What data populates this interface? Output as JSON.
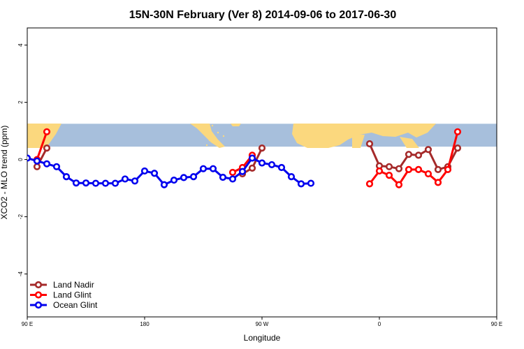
{
  "chart_data": {
    "type": "line",
    "title": "15N-30N February (Ver 8)   2014-09-06 to 2017-06-30",
    "xlabel": "Longitude",
    "ylabel": "XCO2 - MLO trend (ppm)",
    "xlim": [
      90,
      450
    ],
    "ylim": [
      -5.5,
      4.6
    ],
    "x_ticks": [
      {
        "value": 90,
        "label": "90 E"
      },
      {
        "value": 180,
        "label": "180"
      },
      {
        "value": 270,
        "label": "90 W"
      },
      {
        "value": 360,
        "label": "0"
      },
      {
        "value": 450,
        "label": "90 E"
      },
      {
        "value": 540,
        "label": "180"
      }
    ],
    "y_ticks": [
      {
        "value": -4,
        "label": "-4"
      },
      {
        "value": -2,
        "label": "-2"
      },
      {
        "value": 0,
        "label": "0"
      },
      {
        "value": 2,
        "label": "2"
      },
      {
        "value": 4,
        "label": "4"
      }
    ],
    "map_band": {
      "y_range": [
        0.45,
        1.25
      ],
      "ocean_color": "#a7bfdc",
      "land_color": "#fbd87e"
    },
    "legend_position": "bottom-left",
    "series": [
      {
        "name": "Land Nadir",
        "color": "#a52a2a",
        "segments": [
          [
            [
              97.5,
              -0.25
            ],
            [
              105,
              0.4
            ]
          ],
          [
            [
              255,
              -0.5
            ],
            [
              262.5,
              -0.3
            ],
            [
              270,
              0.4
            ]
          ],
          [
            [
              352.5,
              0.55
            ],
            [
              360,
              -0.22
            ],
            [
              367.5,
              -0.25
            ],
            [
              375,
              -0.32
            ],
            [
              382.5,
              0.18
            ],
            [
              390,
              0.15
            ],
            [
              397.5,
              0.35
            ],
            [
              405,
              -0.35
            ],
            [
              412.5,
              -0.25
            ],
            [
              420,
              0.4
            ]
          ]
        ]
      },
      {
        "name": "Land Glint",
        "color": "#ff0000",
        "segments": [
          [
            [
              97.5,
              0
            ],
            [
              105,
              0.97
            ]
          ],
          [
            [
              247.5,
              -0.45
            ],
            [
              255,
              -0.28
            ],
            [
              262.5,
              0.15
            ]
          ],
          [
            [
              352.5,
              -0.85
            ],
            [
              360,
              -0.4
            ],
            [
              367.5,
              -0.55
            ],
            [
              375,
              -0.88
            ],
            [
              382.5,
              -0.35
            ],
            [
              390,
              -0.35
            ],
            [
              397.5,
              -0.5
            ],
            [
              405,
              -0.8
            ],
            [
              412.5,
              -0.35
            ],
            [
              420,
              0.97
            ]
          ]
        ]
      },
      {
        "name": "Ocean Glint",
        "color": "#0000ee",
        "segments": [
          [
            [
              90,
              0.05
            ],
            [
              97.5,
              -0.05
            ],
            [
              105,
              -0.15
            ],
            [
              112.5,
              -0.25
            ],
            [
              120,
              -0.6
            ],
            [
              127.5,
              -0.82
            ],
            [
              135,
              -0.82
            ],
            [
              142.5,
              -0.83
            ],
            [
              150,
              -0.83
            ],
            [
              157.5,
              -0.83
            ],
            [
              165,
              -0.68
            ],
            [
              172.5,
              -0.75
            ],
            [
              180,
              -0.4
            ],
            [
              187.5,
              -0.48
            ],
            [
              195,
              -0.88
            ],
            [
              202.5,
              -0.72
            ],
            [
              210,
              -0.63
            ],
            [
              217.5,
              -0.6
            ],
            [
              225,
              -0.32
            ],
            [
              232.5,
              -0.32
            ],
            [
              240,
              -0.62
            ],
            [
              247.5,
              -0.68
            ],
            [
              255,
              -0.42
            ],
            [
              262.5,
              0.05
            ],
            [
              270,
              -0.12
            ],
            [
              277.5,
              -0.18
            ],
            [
              285,
              -0.28
            ],
            [
              292.5,
              -0.6
            ],
            [
              300,
              -0.85
            ],
            [
              307.5,
              -0.83
            ]
          ]
        ]
      }
    ]
  }
}
